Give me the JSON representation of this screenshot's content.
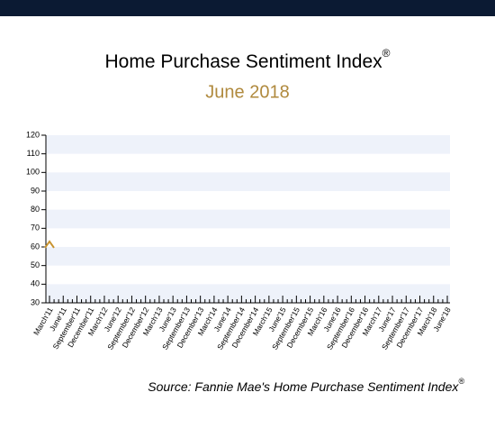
{
  "chart_data": {
    "type": "line",
    "title": "Home Purchase Sentiment Index",
    "title_superscript": "®",
    "subtitle": "June 2018",
    "source": "Source: Fannie Mae's Home Purchase Sentiment Index",
    "source_superscript": "®",
    "categories": [
      "March'11",
      "June'11",
      "September'11",
      "December'11",
      "March'12",
      "June'12",
      "September'12",
      "December'12",
      "March'13",
      "June'13",
      "September'13",
      "December'13",
      "March'14",
      "June'14",
      "September'14",
      "December'14",
      "March'15",
      "June'15",
      "September'15",
      "December'15",
      "March'16",
      "June'16",
      "September'16",
      "December'16",
      "March'17",
      "June'17",
      "September'17",
      "December'17",
      "March'18",
      "June'18"
    ],
    "series": [
      {
        "color": "#c8932f",
        "values": [
          61,
          null,
          null,
          null,
          null,
          null,
          null,
          null,
          null,
          null,
          null,
          null,
          null,
          null,
          null,
          null,
          null,
          null,
          null,
          null,
          null,
          null,
          null,
          null,
          null,
          null,
          null,
          null,
          null,
          null
        ]
      }
    ],
    "ylim": [
      30,
      120
    ],
    "yticks": [
      30,
      40,
      50,
      60,
      70,
      80,
      90,
      100,
      110,
      120
    ],
    "grid": true,
    "band_color": "#eef2fa"
  }
}
